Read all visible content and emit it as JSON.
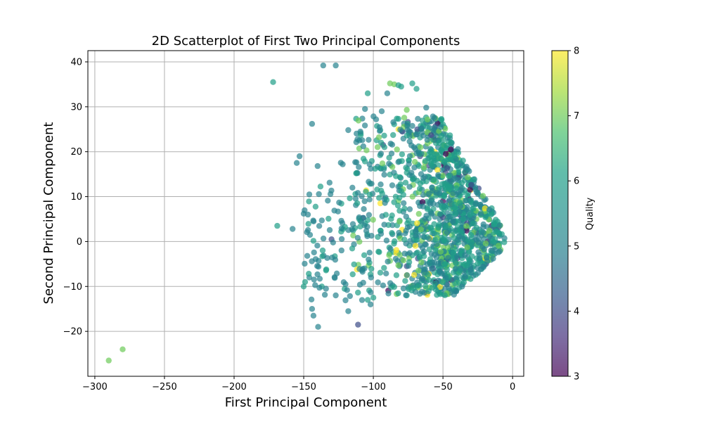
{
  "chart_data": {
    "type": "scatter",
    "title": "2D Scatterplot of First Two Principal Components",
    "xlabel": "First Principal Component",
    "ylabel": "Second Principal Component",
    "xlim": [
      -305,
      8
    ],
    "ylim": [
      -30,
      42.5
    ],
    "xticks": [
      -300,
      -250,
      -200,
      -150,
      -100,
      -50,
      0
    ],
    "yticks": [
      -20,
      -10,
      0,
      10,
      20,
      30,
      40
    ],
    "grid": true,
    "colorbar": {
      "label": "Quality",
      "min": 3,
      "max": 8,
      "ticks": [
        3,
        4,
        5,
        6,
        7,
        8
      ],
      "colormap": "viridis",
      "alpha": 0.7
    },
    "points": [
      {
        "x": -290,
        "y": -26.5,
        "q": 7
      },
      {
        "x": -280,
        "y": -24,
        "q": 7
      },
      {
        "x": -172,
        "y": 35.5,
        "q": 6
      },
      {
        "x": -169,
        "y": 3.5,
        "q": 6
      },
      {
        "x": -155,
        "y": 17.5,
        "q": 5
      },
      {
        "x": -153,
        "y": 19,
        "q": 5
      },
      {
        "x": -158,
        "y": 2.8,
        "q": 5
      },
      {
        "x": -150,
        "y": 6.2,
        "q": 5
      },
      {
        "x": -147,
        "y": 6,
        "q": 5
      },
      {
        "x": -146,
        "y": 10.5,
        "q": 5
      },
      {
        "x": -144,
        "y": 26.2,
        "q": 5
      },
      {
        "x": -140,
        "y": 16.8,
        "q": 5
      },
      {
        "x": -136,
        "y": 39.2,
        "q": 5
      },
      {
        "x": -127,
        "y": 39.2,
        "q": 5
      },
      {
        "x": -149,
        "y": -9,
        "q": 6
      },
      {
        "x": -150,
        "y": -10,
        "q": 6
      },
      {
        "x": -146,
        "y": -8,
        "q": 5
      },
      {
        "x": -144,
        "y": -15,
        "q": 5
      },
      {
        "x": -143,
        "y": -16.5,
        "q": 5
      },
      {
        "x": -137,
        "y": -10,
        "q": 6
      },
      {
        "x": -134,
        "y": -10.5,
        "q": 5
      },
      {
        "x": -127,
        "y": -12,
        "q": 5
      },
      {
        "x": -120,
        "y": -9.5,
        "q": 5
      },
      {
        "x": -118,
        "y": -15.5,
        "q": 5
      },
      {
        "x": -111,
        "y": -18.5,
        "q": 4
      },
      {
        "x": -104,
        "y": -13,
        "q": 6
      },
      {
        "x": -102,
        "y": -14,
        "q": 5
      },
      {
        "x": -100,
        "y": -12.5,
        "q": 6
      },
      {
        "x": -76,
        "y": -12,
        "q": 6
      },
      {
        "x": -122,
        "y": 17.2,
        "q": 5
      },
      {
        "x": -118,
        "y": 24.8,
        "q": 5
      },
      {
        "x": -110,
        "y": 22.5,
        "q": 5
      },
      {
        "x": -106,
        "y": 29.5,
        "q": 5
      },
      {
        "x": -104,
        "y": 33,
        "q": 6
      },
      {
        "x": -90,
        "y": 33,
        "q": 5
      },
      {
        "x": -88,
        "y": 35.2,
        "q": 7
      },
      {
        "x": -85,
        "y": 35,
        "q": 7
      },
      {
        "x": -82,
        "y": 34.8,
        "q": 6
      },
      {
        "x": -80,
        "y": 34.5,
        "q": 6
      },
      {
        "x": -72,
        "y": 35.2,
        "q": 6
      },
      {
        "x": -69,
        "y": 34,
        "q": 6
      },
      {
        "x": -94,
        "y": 29,
        "q": 5
      },
      {
        "x": -76,
        "y": 29.3,
        "q": 7
      },
      {
        "x": -98,
        "y": 27.2,
        "q": 5
      },
      {
        "x": -95,
        "y": 24.8,
        "q": 6
      },
      {
        "x": -82,
        "y": 25,
        "q": 8
      },
      {
        "x": -93,
        "y": 21.5,
        "q": 4
      },
      {
        "x": -92,
        "y": 21,
        "q": 6
      },
      {
        "x": -83,
        "y": 20.5,
        "q": 7
      },
      {
        "x": -62,
        "y": 29.8,
        "q": 5
      },
      {
        "x": -55,
        "y": 24.8,
        "q": 5
      },
      {
        "x": -52,
        "y": 27,
        "q": 6
      },
      {
        "x": -45,
        "y": 23,
        "q": 5
      },
      {
        "x": -58,
        "y": 24.5,
        "q": 7
      },
      {
        "x": -57,
        "y": 23.3,
        "q": 4
      },
      {
        "x": -56,
        "y": 22.6,
        "q": 3
      },
      {
        "x": -95,
        "y": 8.5,
        "q": 8
      },
      {
        "x": -76,
        "y": -7.5,
        "q": 8
      },
      {
        "x": -82,
        "y": 9,
        "q": 7
      },
      {
        "x": -46,
        "y": 11.5,
        "q": 7
      },
      {
        "x": -30,
        "y": 11.5,
        "q": 8
      },
      {
        "x": -26,
        "y": 5,
        "q": 7
      },
      {
        "x": -20,
        "y": 6.5,
        "q": 7
      },
      {
        "x": -56,
        "y": 20,
        "q": 8
      },
      {
        "x": -130,
        "y": 0.5,
        "q": 4
      },
      {
        "x": -76,
        "y": -5.5,
        "q": 4
      },
      {
        "x": -50,
        "y": 9,
        "q": 3
      },
      {
        "x": -15,
        "y": 3.5,
        "q": 3
      },
      {
        "x": -12,
        "y": 2.8,
        "q": 3
      },
      {
        "x": -10,
        "y": 3.2,
        "q": 4
      },
      {
        "x": -18,
        "y": 0,
        "q": 3
      },
      {
        "x": -30,
        "y": -0.5,
        "q": 4
      },
      {
        "x": -62,
        "y": 4.5,
        "q": 4
      },
      {
        "x": -40,
        "y": 2.5,
        "q": 4
      },
      {
        "x": -34,
        "y": -5,
        "q": 6
      },
      {
        "x": -40,
        "y": -8,
        "q": 6
      },
      {
        "x": -40,
        "y": -8.5,
        "q": 6
      }
    ],
    "scatter_seed": 42
  }
}
